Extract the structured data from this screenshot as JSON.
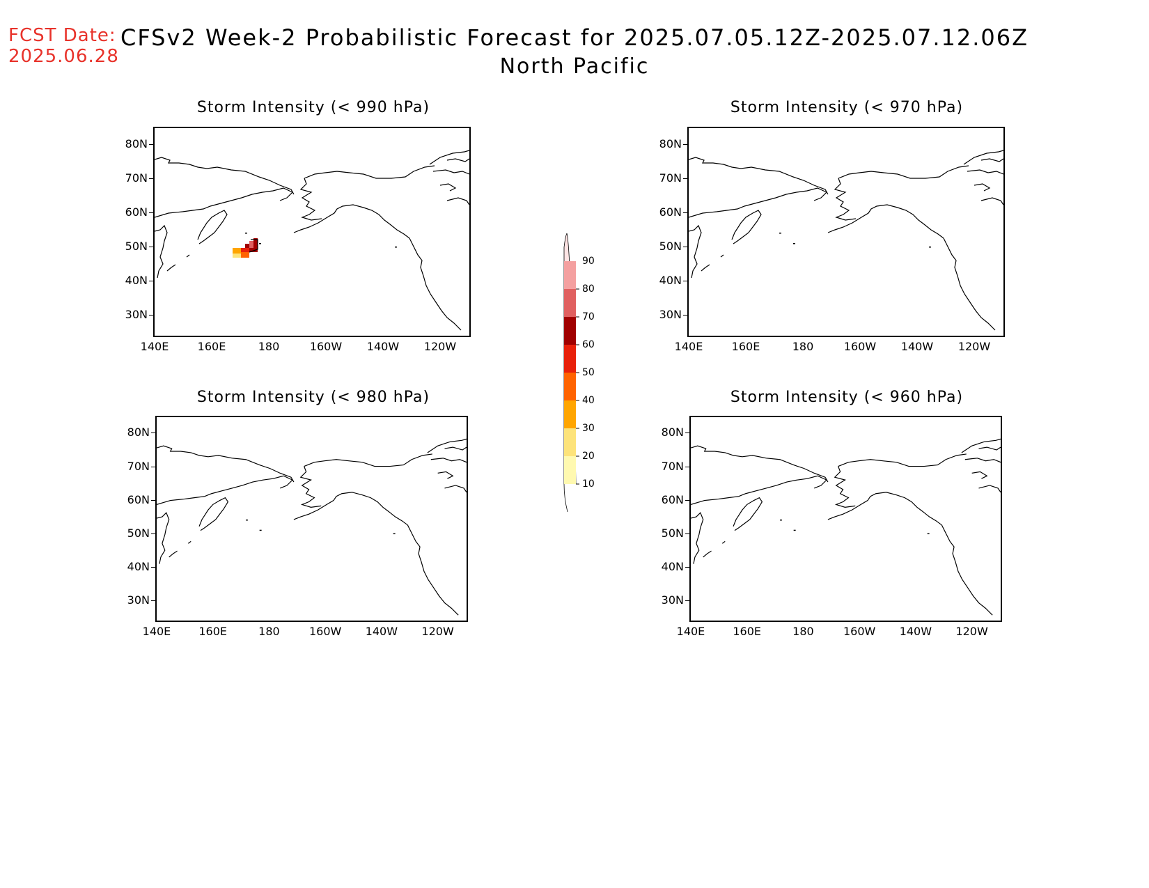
{
  "fcst": {
    "label": "FCST Date:",
    "date": "2025.06.28"
  },
  "title": "CFSv2 Week-2 Probabilistic Forecast for 2025.07.05.12Z-2025.07.12.06Z",
  "subtitle": "North Pacific",
  "panels": [
    {
      "title": "Storm Intensity (< 990 hPa)"
    },
    {
      "title": "Storm Intensity (< 970 hPa)"
    },
    {
      "title": "Storm Intensity (< 980 hPa)"
    },
    {
      "title": "Storm Intensity (< 960 hPa)"
    }
  ],
  "lat_ticks": [
    "80N",
    "70N",
    "60N",
    "50N",
    "40N",
    "30N"
  ],
  "lon_ticks": [
    "140E",
    "160E",
    "180",
    "160W",
    "140W",
    "120W"
  ],
  "colorbar": {
    "levels": [
      "10",
      "20",
      "30",
      "40",
      "50",
      "60",
      "70",
      "80",
      "90"
    ],
    "colors": [
      "#fff9b0",
      "#fde37a",
      "#ffa500",
      "#ff6300",
      "#e8200a",
      "#a00000",
      "#e06060",
      "#f4a0a0",
      "#ffe4e4"
    ]
  }
}
